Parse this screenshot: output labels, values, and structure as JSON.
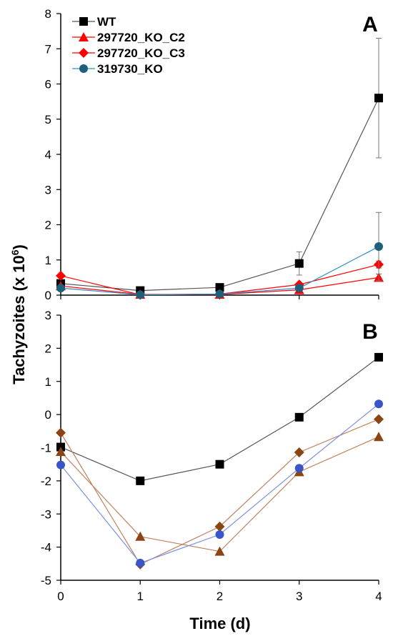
{
  "figure": {
    "ylabel": "Tachyzoites (x 10",
    "ylabel_sup": "6",
    "ylabel_close": ")",
    "xlabel": "Time (d)"
  },
  "chart_data": [
    {
      "type": "line",
      "panel_label": "A",
      "x": [
        0,
        1,
        2,
        3,
        4
      ],
      "xlim": [
        0,
        4
      ],
      "ylim": [
        0,
        8
      ],
      "xticks": [
        "0",
        "1",
        "2",
        "3",
        "4"
      ],
      "yticks": [
        "0",
        "1",
        "2",
        "3",
        "4",
        "5",
        "6",
        "7",
        "8"
      ],
      "grid": false,
      "legend_position": "top-left",
      "series": [
        {
          "name": "WT",
          "marker": "square",
          "color": "#000000",
          "line_color": "#555555",
          "values": [
            0.33,
            0.13,
            0.22,
            0.9,
            5.6
          ],
          "errors": [
            0.05,
            0.03,
            0.04,
            0.33,
            1.7
          ]
        },
        {
          "name": "297720_KO_C2",
          "marker": "triangle",
          "color": "#ff0000",
          "line_color": "#ff0000",
          "values": [
            0.26,
            0.02,
            0.02,
            0.15,
            0.5
          ],
          "errors": [
            0.03,
            0.01,
            0.01,
            0.03,
            0.1
          ]
        },
        {
          "name": "297720_KO_C3",
          "marker": "diamond",
          "color": "#ff0000",
          "line_color": "#ff0000",
          "values": [
            0.55,
            0.01,
            0.03,
            0.3,
            0.87
          ],
          "errors": [
            0.05,
            0.01,
            0.01,
            0.05,
            0.1
          ]
        },
        {
          "name": "319730_KO",
          "marker": "circle",
          "color": "#1f5f7a",
          "line_color": "#2c8fc9",
          "values": [
            0.2,
            0.01,
            0.03,
            0.2,
            1.38
          ],
          "errors": [
            0.03,
            0.01,
            0.01,
            0.05,
            0.97
          ]
        }
      ]
    },
    {
      "type": "line",
      "panel_label": "B",
      "x": [
        0,
        1,
        2,
        3,
        4
      ],
      "xlim": [
        0,
        4
      ],
      "ylim": [
        -5,
        3
      ],
      "xticks": [
        "0",
        "1",
        "2",
        "3",
        "4"
      ],
      "yticks": [
        "3",
        "2",
        "1",
        "0",
        "-1",
        "-2",
        "-3",
        "-4",
        "-5"
      ],
      "grid": false,
      "series": [
        {
          "marker": "square",
          "color": "#000000",
          "line_color": "#555555",
          "values": [
            -0.98,
            -2.0,
            -1.5,
            -0.08,
            1.73
          ]
        },
        {
          "marker": "triangle",
          "color": "#8b4513",
          "line_color": "#c08060",
          "values": [
            -1.12,
            -3.68,
            -4.13,
            -1.73,
            -0.67
          ]
        },
        {
          "marker": "diamond",
          "color": "#8b4513",
          "line_color": "#c08060",
          "values": [
            -0.55,
            -4.52,
            -3.38,
            -1.14,
            -0.14
          ]
        },
        {
          "marker": "circle",
          "color": "#3a55c8",
          "line_color": "#7a8fe0",
          "values": [
            -1.52,
            -4.48,
            -3.62,
            -1.62,
            0.32
          ]
        }
      ]
    }
  ]
}
